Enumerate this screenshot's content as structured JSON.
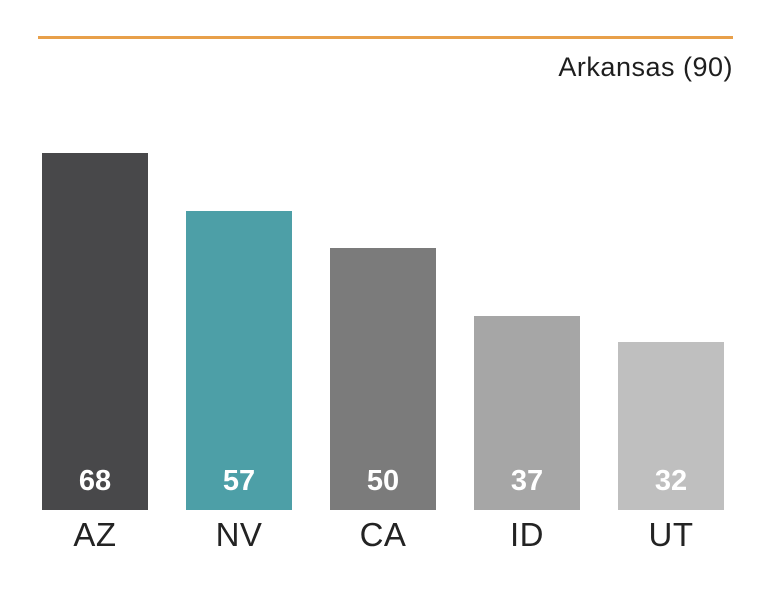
{
  "chart_data": {
    "type": "bar",
    "categories": [
      "AZ",
      "NV",
      "CA",
      "ID",
      "UT"
    ],
    "values": [
      68,
      57,
      50,
      37,
      32
    ],
    "bar_colors": [
      "#48484a",
      "#4d9fa7",
      "#7b7b7b",
      "#a6a6a6",
      "#bfbfbf"
    ],
    "value_label_color": "#ffffff",
    "category_label_color": "#232323",
    "reference_line": {
      "label": "Arkansas (90)",
      "value": 90,
      "color": "#e8a04a"
    },
    "title": "",
    "xlabel": "",
    "ylabel": "",
    "ylim": [
      0,
      90
    ],
    "grid": false,
    "legend": false
  }
}
